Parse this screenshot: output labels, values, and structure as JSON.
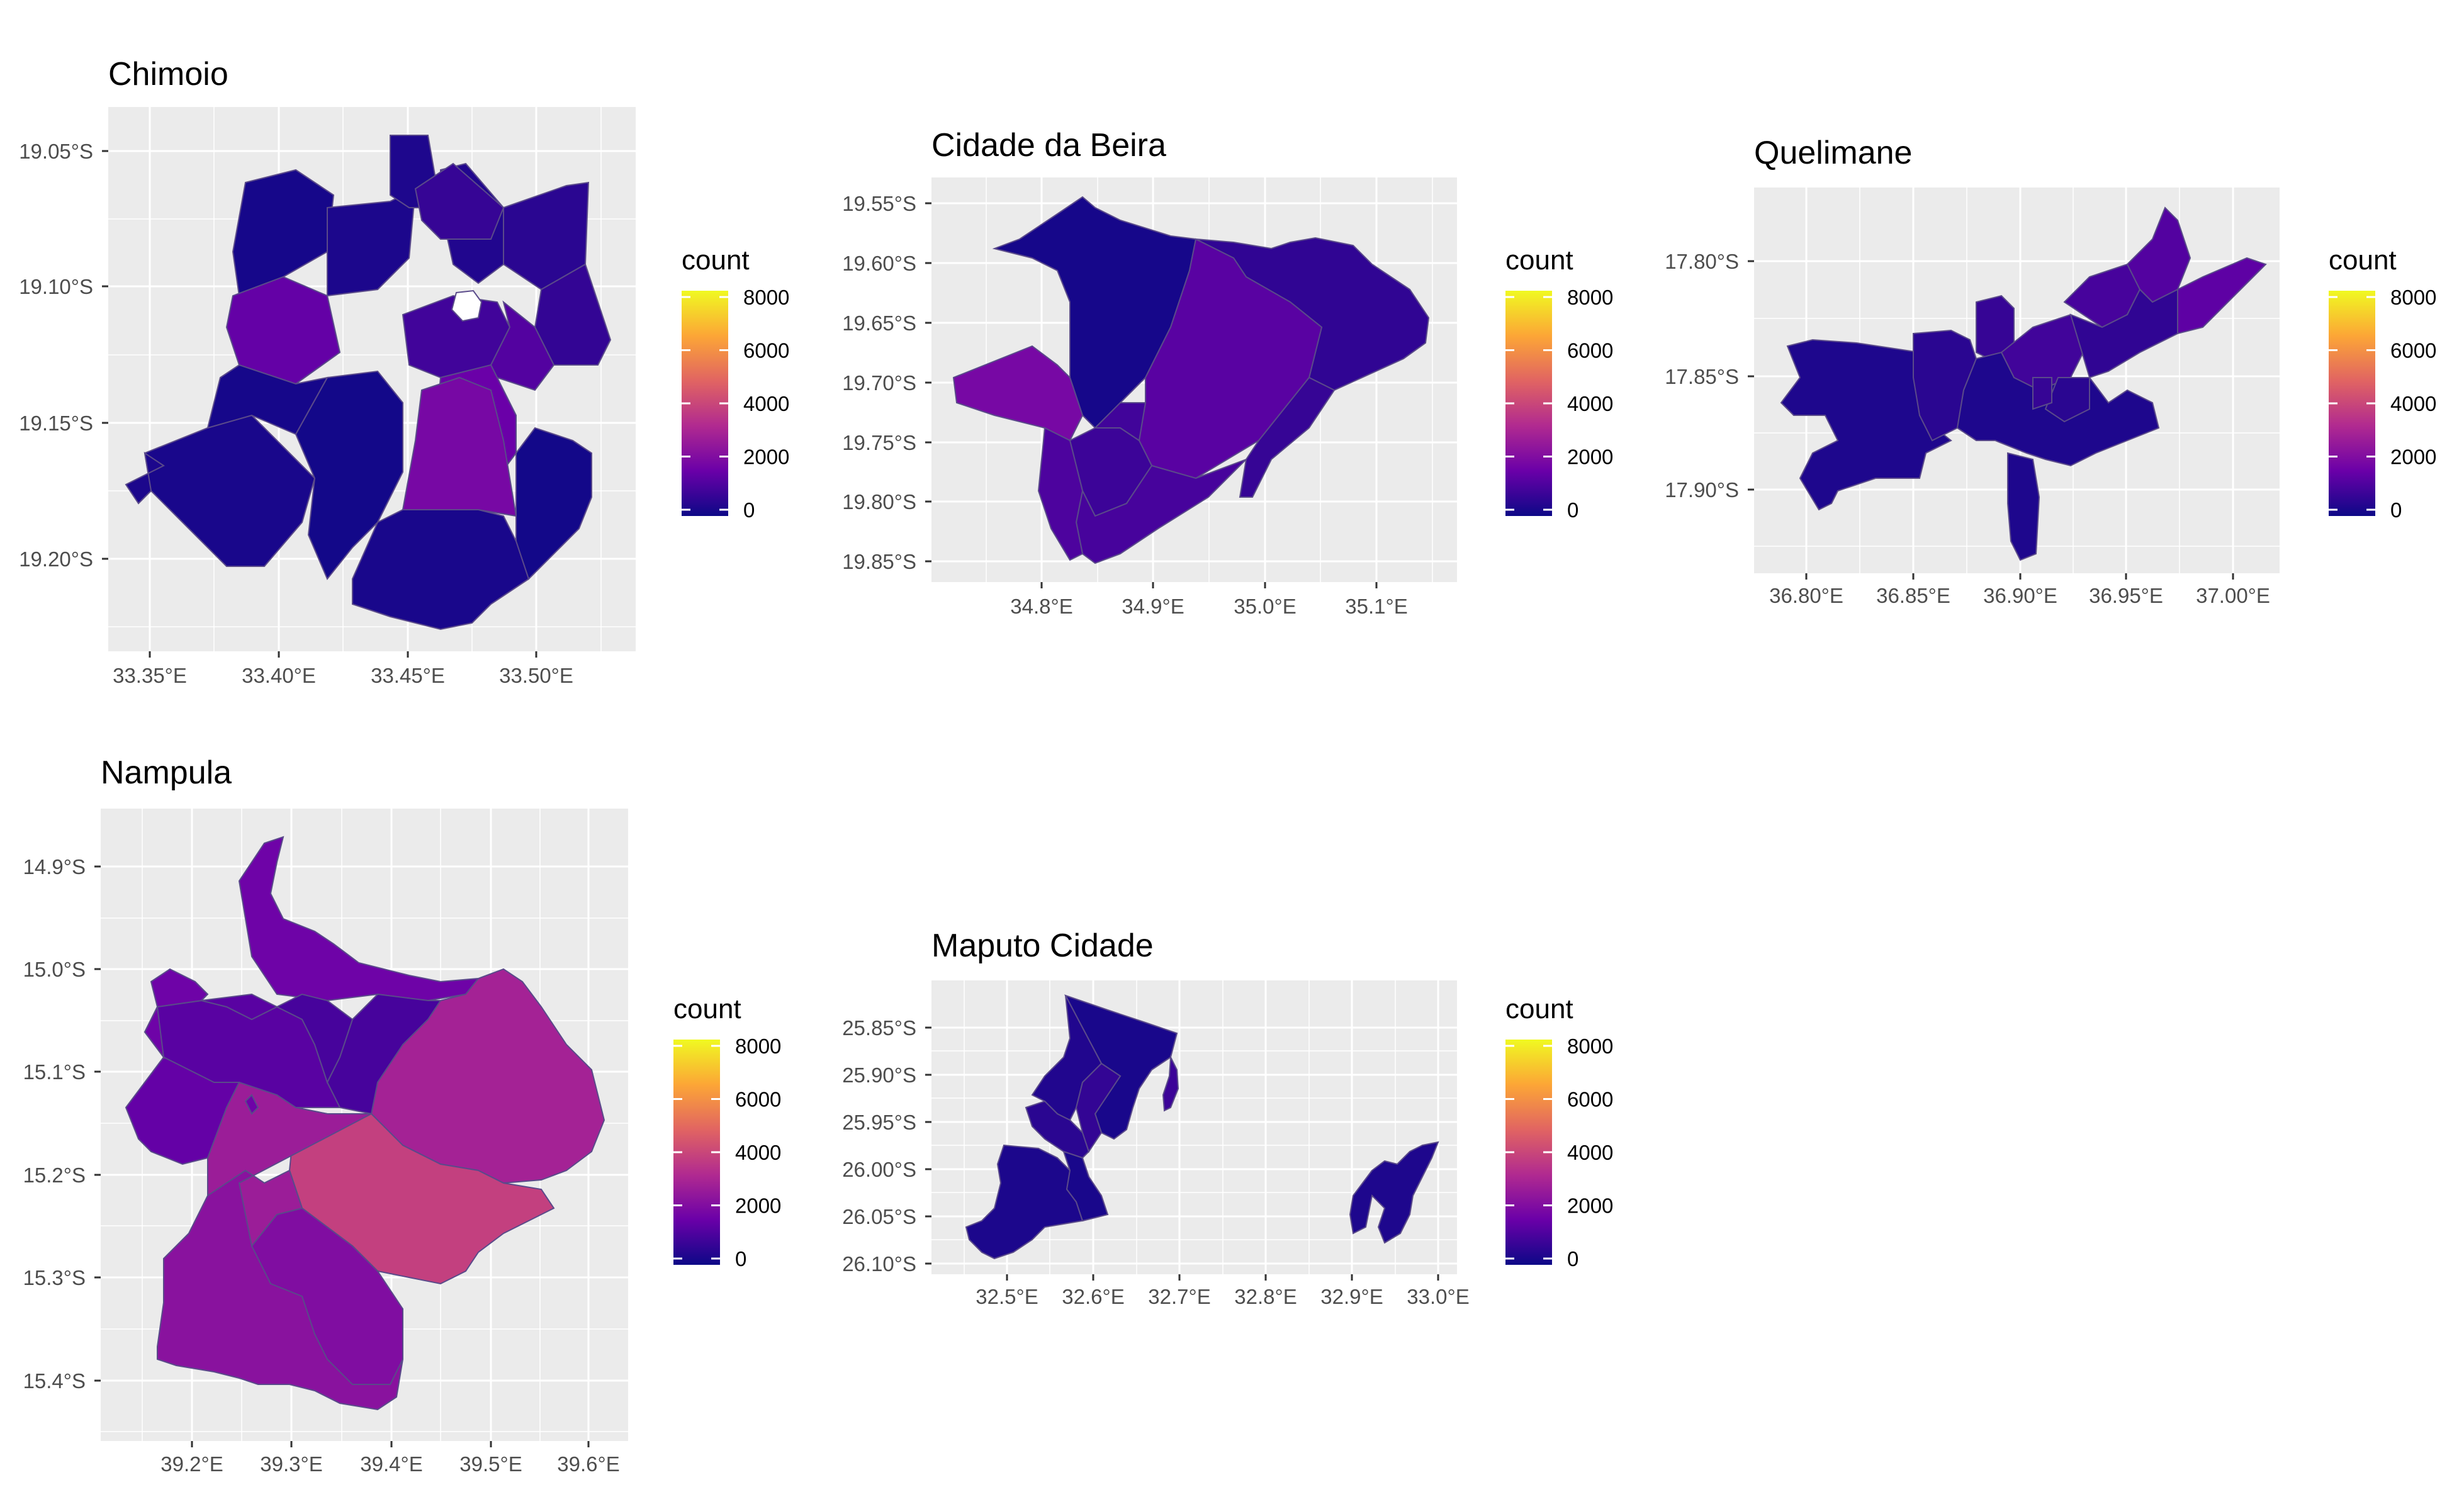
{
  "legend": {
    "title": "count",
    "labels": [
      "8000",
      "6000",
      "4000",
      "2000",
      "0"
    ],
    "colors": [
      "#0D0887",
      "#6A00A8",
      "#B12A90",
      "#E16462",
      "#FCA636",
      "#F0F921"
    ]
  },
  "colors": {
    "panel_bg": "#EBEBEB",
    "grid": "#FFFFFF",
    "tick_text": "#4D4D4D",
    "border": "#5A4A8A"
  },
  "panels": [
    {
      "title": "Chimoio",
      "x_ticks": [
        "33.35°E",
        "33.40°E",
        "33.45°E",
        "33.50°E"
      ],
      "y_ticks": [
        "19.05°S",
        "19.10°S",
        "19.15°S",
        "19.20°S"
      ],
      "district_counts": [
        150,
        250,
        300,
        350,
        500,
        650,
        700,
        900,
        1200,
        1500,
        1600,
        1900,
        200,
        100
      ]
    },
    {
      "title": "Cidade da Beira",
      "x_ticks": [
        "34.8°E",
        "34.9°E",
        "35.0°E",
        "35.1°E"
      ],
      "y_ticks": [
        "19.55°S",
        "19.60°S",
        "19.65°S",
        "19.70°S",
        "19.75°S",
        "19.80°S",
        "19.85°S"
      ],
      "district_counts": [
        150,
        600,
        1300,
        1900,
        800,
        1000,
        1100,
        700,
        900
      ]
    },
    {
      "title": "Quelimane",
      "x_ticks": [
        "36.80°E",
        "36.85°E",
        "36.90°E",
        "36.95°E",
        "37.00°E"
      ],
      "y_ticks": [
        "17.80°S",
        "17.85°S",
        "17.90°S"
      ],
      "district_counts": [
        300,
        500,
        700,
        900,
        1000,
        1200,
        1400,
        600
      ]
    },
    {
      "title": "Nampula",
      "x_ticks": [
        "39.2°E",
        "39.3°E",
        "39.4°E",
        "39.5°E",
        "39.6°E"
      ],
      "y_ticks": [
        "14.9°S",
        "15.0°S",
        "15.1°S",
        "15.2°S",
        "15.3°S",
        "15.4°S"
      ],
      "district_counts": [
        1700,
        2900,
        3800,
        2300,
        2100,
        2700,
        1000,
        1300,
        1500
      ]
    },
    {
      "title": "Maputo Cidade",
      "x_ticks": [
        "32.5°E",
        "32.6°E",
        "32.7°E",
        "32.8°E",
        "32.9°E",
        "33.0°E"
      ],
      "y_ticks": [
        "25.85°S",
        "25.90°S",
        "25.95°S",
        "26.00°S",
        "26.05°S",
        "26.10°S"
      ],
      "district_counts": [
        200,
        350,
        500,
        650,
        800,
        250,
        300
      ]
    }
  ]
}
